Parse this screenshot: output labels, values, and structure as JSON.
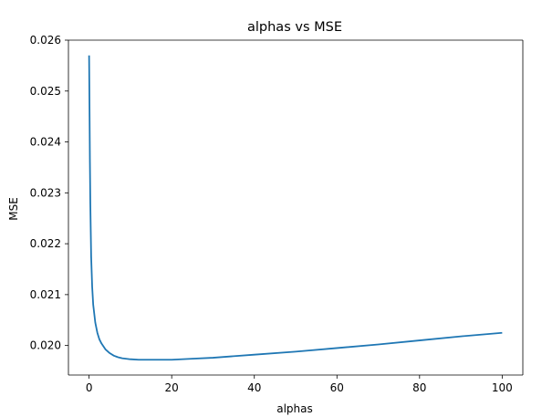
{
  "chart_data": {
    "type": "line",
    "title": "alphas vs MSE",
    "xlabel": "alphas",
    "ylabel": "MSE",
    "xlim": [
      -5,
      105
    ],
    "ylim": [
      0.01942,
      0.026
    ],
    "xticks": [
      0,
      20,
      40,
      60,
      80,
      100
    ],
    "xtick_labels": [
      "0",
      "20",
      "40",
      "60",
      "80",
      "100"
    ],
    "yticks": [
      0.02,
      0.021,
      0.022,
      0.023,
      0.024,
      0.025,
      0.026
    ],
    "ytick_labels": [
      "0.020",
      "0.021",
      "0.022",
      "0.023",
      "0.024",
      "0.025",
      "0.026"
    ],
    "grid": false,
    "legend": "none",
    "series": [
      {
        "color": "#1f77b4",
        "x": [
          0.0,
          0.1,
          0.2,
          0.3,
          0.5,
          0.75,
          1.0,
          1.5,
          2.0,
          2.5,
          3.0,
          4.0,
          5.0,
          6.0,
          7.0,
          8.0,
          10.0,
          12.0,
          14.0,
          16.0,
          18.0,
          20.0,
          25.0,
          30.0,
          40.0,
          50.0,
          60.0,
          70.0,
          80.0,
          90.0,
          100.0
        ],
        "y": [
          0.0257,
          0.0247,
          0.0236,
          0.0228,
          0.02175,
          0.02115,
          0.0208,
          0.02045,
          0.02025,
          0.02012,
          0.02004,
          0.01992,
          0.01985,
          0.0198,
          0.01977,
          0.01975,
          0.01973,
          0.01972,
          0.01972,
          0.01972,
          0.01972,
          0.01972,
          0.01974,
          0.01976,
          0.01982,
          0.01988,
          0.01995,
          0.02002,
          0.0201,
          0.02018,
          0.02025
        ]
      }
    ]
  }
}
